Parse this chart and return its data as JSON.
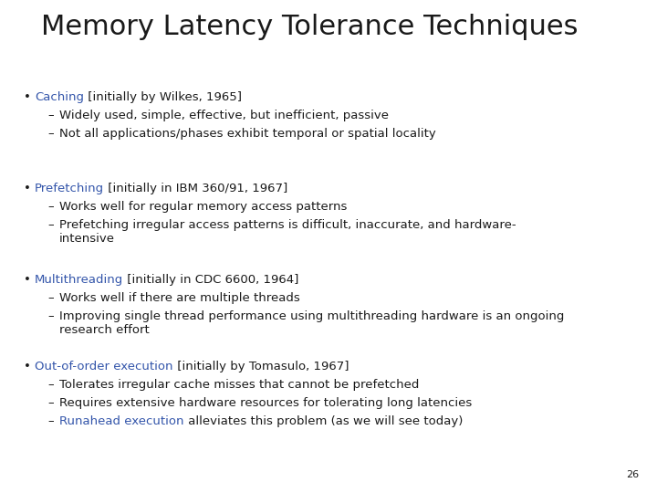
{
  "title": "Memory Latency Tolerance Techniques",
  "title_fontsize": 22,
  "title_color": "#1a1a1a",
  "body_fontsize": 9.5,
  "blue_color": "#3355aa",
  "black_color": "#1a1a1a",
  "background_color": "#ffffff",
  "slide_number": "26",
  "bullets": [
    {
      "highlight": "Caching",
      "rest": " [initially by Wilkes, 1965]",
      "subs": [
        {
          "text": "Widely used, simple, effective, but inefficient, passive",
          "highlight": null
        },
        {
          "text": "Not all applications/phases exhibit temporal or spatial locality",
          "highlight": null
        }
      ]
    },
    {
      "highlight": "Prefetching",
      "rest": " [initially in IBM 360/91, 1967]",
      "subs": [
        {
          "text": "Works well for regular memory access patterns",
          "highlight": null
        },
        {
          "text": "Prefetching irregular access patterns is difficult, inaccurate, and hardware-\nintensive",
          "highlight": null
        }
      ]
    },
    {
      "highlight": "Multithreading",
      "rest": " [initially in CDC 6600, 1964]",
      "subs": [
        {
          "text": "Works well if there are multiple threads",
          "highlight": null
        },
        {
          "text": "Improving single thread performance using multithreading hardware is an ongoing\nresearch effort",
          "highlight": null
        }
      ]
    },
    {
      "highlight": "Out-of-order execution",
      "rest": " [initially by Tomasulo, 1967]",
      "subs": [
        {
          "text": "Tolerates irregular cache misses that cannot be prefetched",
          "highlight": null
        },
        {
          "text": "Requires extensive hardware resources for tolerating long latencies",
          "highlight": null
        },
        {
          "text": " alleviates this problem (as we will see today)",
          "highlight": "Runahead execution"
        }
      ]
    }
  ]
}
